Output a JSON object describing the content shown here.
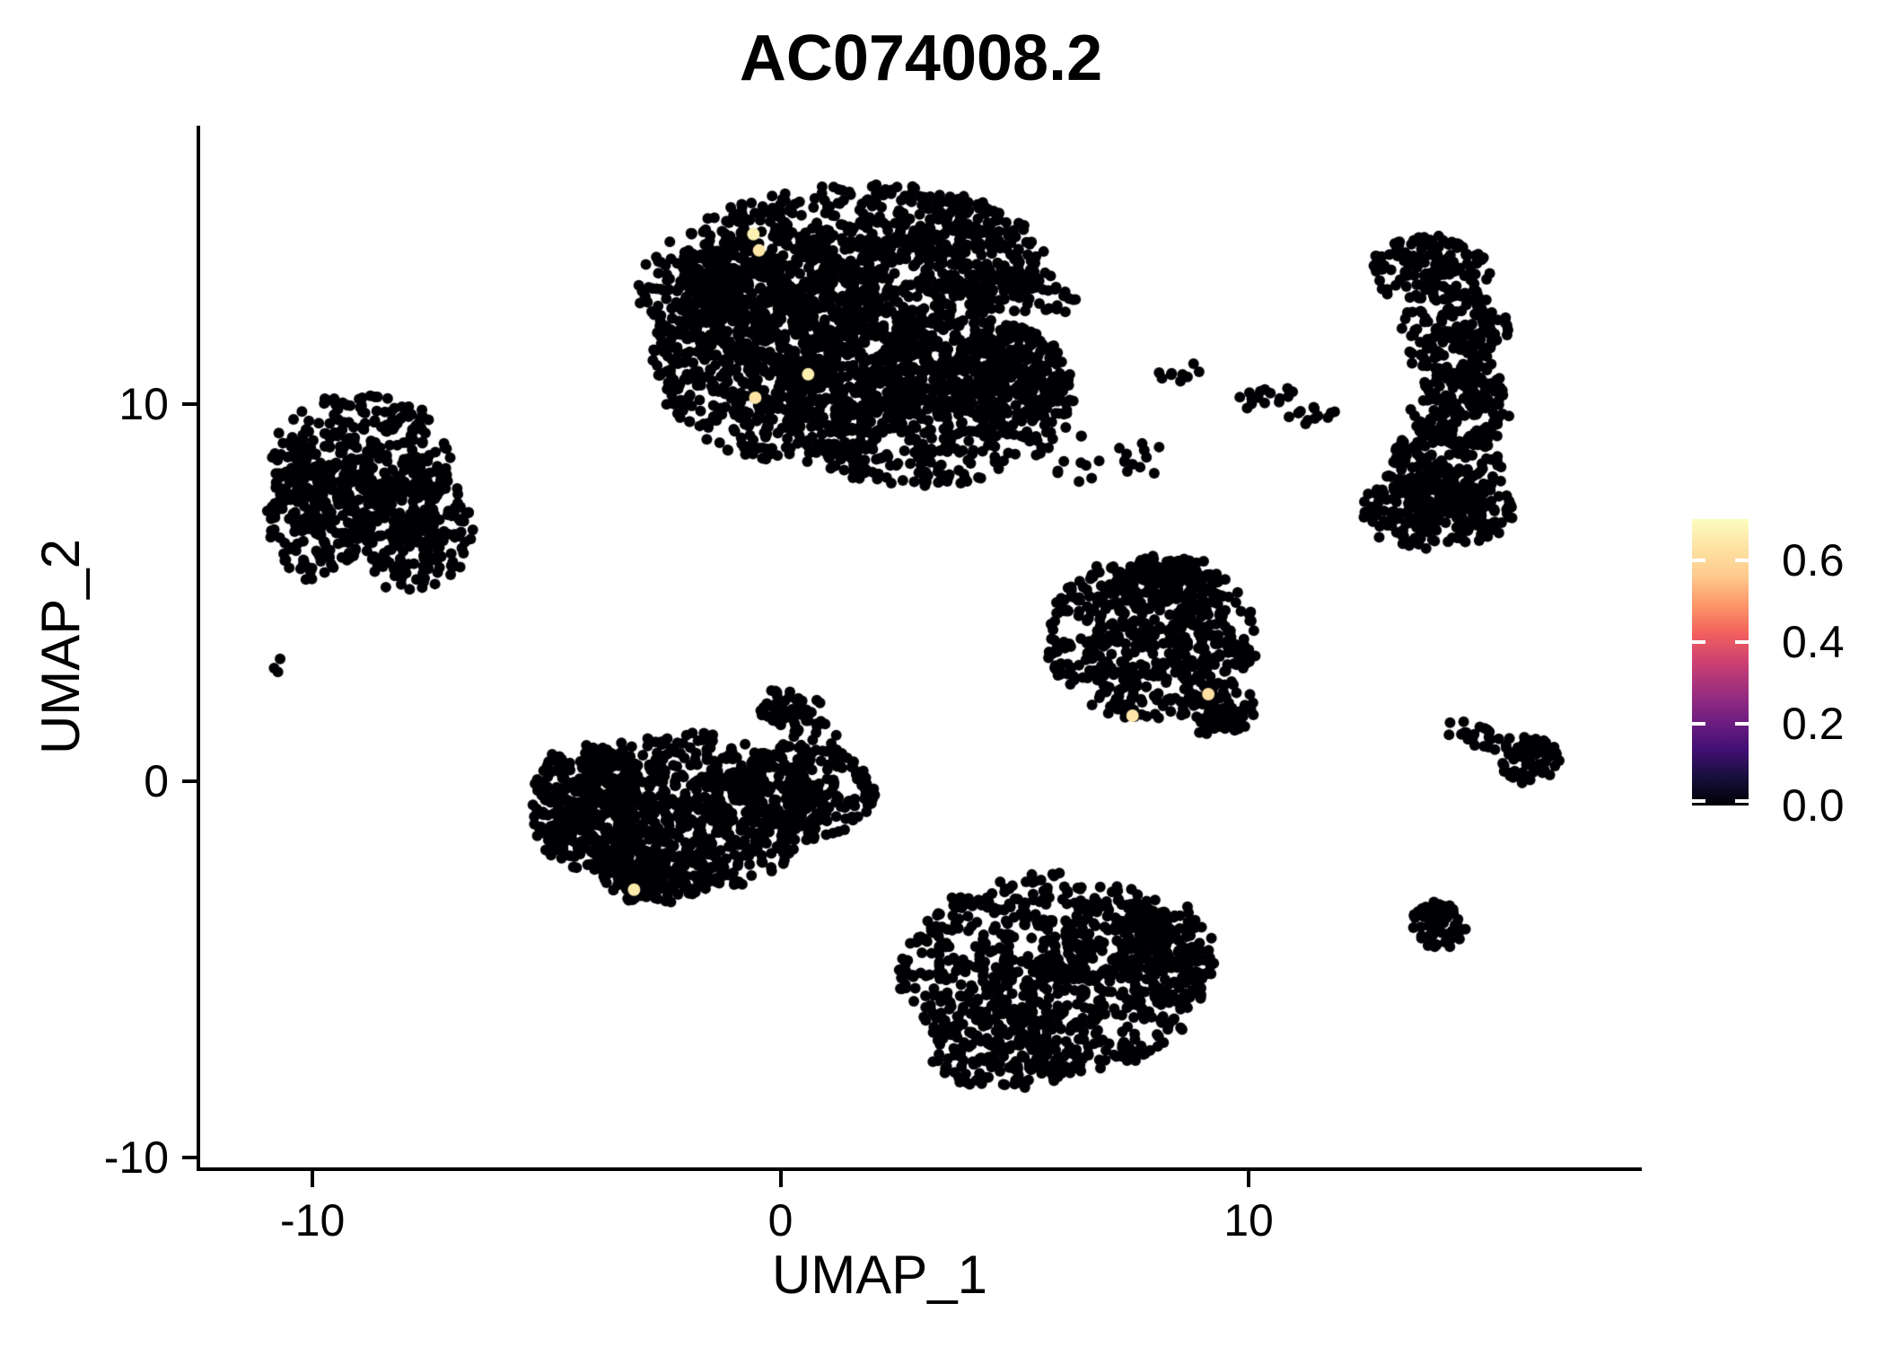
{
  "chart_data": {
    "type": "scatter",
    "title": "AC074008.2",
    "xlabel": "UMAP_1",
    "ylabel": "UMAP_2",
    "xlim": [
      -12.4,
      18.4
    ],
    "ylim": [
      -10.3,
      17.4
    ],
    "xticks": [
      -10,
      0,
      10
    ],
    "yticks": [
      10,
      0,
      -10
    ],
    "grid": false,
    "background": "#ffffff",
    "point_color_zero": "#000004",
    "highlight_color": "#f3eda5",
    "legend": {
      "position": "right",
      "limits": [
        0.0,
        0.7
      ],
      "ticks": [
        0.6,
        0.4,
        0.2,
        0.0
      ],
      "tick_labels": [
        "0.6",
        "0.4",
        "0.2",
        "0.0"
      ],
      "colormap": "magma",
      "gradient_stops": [
        "#000004",
        "#180f3d",
        "#440f76",
        "#721f81",
        "#9e2f7f",
        "#cd4071",
        "#f1605d",
        "#fd9668",
        "#feca8d",
        "#fde2a3",
        "#fcfdbf"
      ]
    },
    "clusters": [
      {
        "name": "top-center-large",
        "blobs": [
          [
            1.77,
            13.83,
            3.94,
            2.03,
            700,
            0
          ],
          [
            0.23,
            11.2,
            2.98,
            2.74,
            800,
            0
          ],
          [
            3.11,
            10.25,
            3.17,
            2.5,
            750,
            0
          ],
          [
            -1.4,
            12.87,
            1.63,
            1.79,
            250,
            0
          ],
          [
            3.69,
            14.66,
            1.15,
            0.83,
            100,
            0
          ],
          [
            4.84,
            13.06,
            1.63,
            0.62,
            90,
            -10
          ],
          [
            4.84,
            10.73,
            1.25,
            1.31,
            200,
            0
          ],
          [
            6.28,
            8.46,
            0.54,
            0.83,
            10,
            0
          ]
        ]
      },
      {
        "name": "left",
        "blobs": [
          [
            -8.98,
            8.34,
            1.92,
            2.03,
            400,
            0
          ],
          [
            -7.83,
            6.67,
            1.25,
            1.67,
            220,
            0
          ],
          [
            -9.94,
            6.91,
            1.06,
            1.55,
            150,
            0
          ],
          [
            -10.81,
            3.1,
            0.23,
            0.24,
            3,
            0
          ]
        ]
      },
      {
        "name": "bottom-left",
        "blobs": [
          [
            -2.07,
            -0.83,
            2.98,
            2.1,
            700,
            0
          ],
          [
            -4.09,
            -0.72,
            1.25,
            1.79,
            250,
            0
          ],
          [
            0.52,
            -0.24,
            1.54,
            1.31,
            220,
            0
          ],
          [
            0.42,
            1.72,
            1.0,
            0.62,
            60,
            -30
          ],
          [
            -2.65,
            -2.5,
            1.25,
            0.76,
            130,
            0
          ]
        ]
      },
      {
        "name": "middle-right-triangle",
        "blobs": [
          [
            7.91,
            3.81,
            2.27,
            2.19,
            550,
            0
          ],
          [
            8.29,
            5.36,
            1.15,
            0.67,
            90,
            0
          ],
          [
            9.35,
            1.91,
            0.81,
            0.72,
            70,
            0
          ]
        ]
      },
      {
        "name": "bottom-center",
        "blobs": [
          [
            5.8,
            -5.13,
            3.3,
            2.67,
            800,
            0
          ],
          [
            8.2,
            -4.53,
            1.11,
            1.33,
            160,
            0
          ],
          [
            4.84,
            -7.1,
            1.77,
            1.1,
            160,
            0
          ]
        ]
      },
      {
        "name": "right-crescent",
        "blobs": [
          [
            13.86,
            13.59,
            1.31,
            0.91,
            140,
            0
          ],
          [
            14.4,
            11.87,
            1.19,
            1.19,
            170,
            0
          ],
          [
            14.53,
            9.89,
            1.11,
            1.24,
            160,
            0
          ],
          [
            14.2,
            8.22,
            1.27,
            1.14,
            160,
            0
          ],
          [
            14.01,
            7.15,
            1.69,
            0.95,
            230,
            0
          ]
        ]
      },
      {
        "name": "small-mid-arc",
        "blobs": [
          [
            10.21,
            10.2,
            0.77,
            0.24,
            16,
            12
          ],
          [
            11.4,
            9.73,
            0.61,
            0.21,
            12,
            8
          ],
          [
            8.52,
            10.85,
            0.42,
            0.38,
            9,
            0
          ],
          [
            7.68,
            8.53,
            0.58,
            0.57,
            12,
            0
          ]
        ]
      },
      {
        "name": "right-comet",
        "blobs": [
          [
            16.01,
            0.57,
            0.61,
            0.64,
            70,
            0
          ],
          [
            14.97,
            1.19,
            0.92,
            0.31,
            22,
            -18
          ]
        ]
      },
      {
        "name": "bottom-right-blob",
        "blobs": [
          [
            14.05,
            -3.81,
            0.58,
            0.64,
            70,
            0
          ]
        ]
      }
    ],
    "highlighted_points": [
      [
        -0.58,
        14.52,
        0.67
      ],
      [
        -0.46,
        14.09,
        0.64
      ],
      [
        0.59,
        10.8,
        0.66
      ],
      [
        -0.54,
        10.18,
        0.63
      ],
      [
        -3.13,
        -2.88,
        0.65
      ],
      [
        9.14,
        2.31,
        0.62
      ],
      [
        7.52,
        1.74,
        0.64
      ]
    ]
  }
}
